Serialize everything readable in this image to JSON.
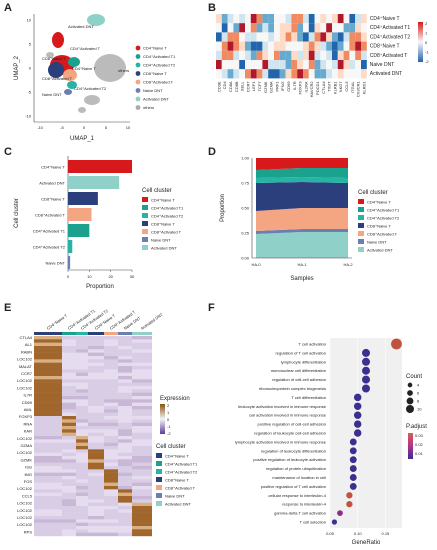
{
  "panels": {
    "a": "A",
    "b": "B",
    "c": "C",
    "d": "D",
    "e": "E",
    "f": "F"
  },
  "colors": {
    "cd4_naive": "#d7191c",
    "cd4_act1": "#1aa28f",
    "cd4_act2": "#26b4a4",
    "cd8_naive": "#2b3f7c",
    "cd8_act": "#f4a582",
    "naive_dnt": "#6a7fb0",
    "act_dnt": "#8fd0c8",
    "others": "#aaaaaa"
  },
  "panelA": {
    "xlabel": "UMAP_1",
    "ylabel": "UMAP_2",
    "xticks": [
      "-10",
      "-5",
      "0",
      "5",
      "10"
    ],
    "yticks": [
      "10",
      "5",
      "0",
      "-5",
      "-10"
    ],
    "cluster_labels": [
      "Activated DNT",
      "CD4⁺Activated T",
      "CD8⁺Naive T",
      "CD4⁺Naive T",
      "CD4⁺Activated T2",
      "Naive DNT",
      "CD8⁺Activated T",
      "others"
    ],
    "legend": [
      "CD4⁺Naive T",
      "CD4⁺Activated T1",
      "CD4⁺Activated T2",
      "CD8⁺Naive T",
      "CD8⁺Activated T",
      "Naive DNT",
      "Activated DNT",
      "others"
    ]
  },
  "panelB": {
    "rows": [
      "CD4⁺Naive T",
      "CD4⁺Activated T1",
      "CD4⁺Activated T2",
      "CD8⁺Naive T",
      "CD8⁺Activated T",
      "Naive DNT",
      "Activated DNT"
    ],
    "cols": [
      "CD3E",
      "CD4",
      "CD8A",
      "CD8B",
      "SELL",
      "CCR7",
      "LEF1",
      "TCF7",
      "GZMK",
      "GZMA",
      "PRF1",
      "IFNG",
      "CD69",
      "IL7R",
      "FOXP3",
      "IL2RA",
      "HAVCR2",
      "PDCD1",
      "CTLA4",
      "TIGIT",
      "KLRB1",
      "NKG7",
      "CCL5",
      "ITGAL",
      "CX3CR1",
      "KLRD1"
    ],
    "scale_ticks": [
      "2",
      "1",
      "0",
      "-1",
      "-2"
    ]
  },
  "chart_data": [
    {
      "type": "bar",
      "categories": [
        "CD4⁺Naive T",
        "Activated DNT",
        "CD8⁺Naive T",
        "CD8⁺Activated T",
        "CD4⁺Activated T1",
        "CD4⁺Activated T2",
        "Naive DNT"
      ],
      "values": [
        30,
        24,
        14,
        11,
        10,
        2,
        1
      ],
      "xlabel": "Proportion",
      "ylabel": "Cell cluster",
      "xlim": [
        0,
        30
      ],
      "xticks": [
        "0",
        "10",
        "20",
        "30"
      ],
      "legend_title": "Cell cluster",
      "legend": [
        "CD4⁺Naive T",
        "CD4⁺Activated T1",
        "CD4⁺Activated T2",
        "CD8⁺Naive T",
        "CD8⁺Activated T",
        "Naive DNT",
        "Activated DNT"
      ]
    },
    {
      "type": "area",
      "x": [
        "HA-0",
        "HA-1",
        "HA-2"
      ],
      "series": [
        {
          "name": "CD4⁺Naive T",
          "values": [
            0.12,
            0.1,
            0.1
          ]
        },
        {
          "name": "CD4⁺Activated T1",
          "values": [
            0.08,
            0.09,
            0.1
          ]
        },
        {
          "name": "CD4⁺Activated T2",
          "values": [
            0.05,
            0.05,
            0.05
          ]
        },
        {
          "name": "CD8⁺Naive T",
          "values": [
            0.28,
            0.26,
            0.25
          ]
        },
        {
          "name": "CD8⁺Activated T",
          "values": [
            0.2,
            0.21,
            0.21
          ]
        },
        {
          "name": "Naive DNT",
          "values": [
            0.03,
            0.03,
            0.03
          ]
        },
        {
          "name": "Activated DNT",
          "values": [
            0.24,
            0.26,
            0.26
          ]
        }
      ],
      "xlabel": "Samples",
      "ylabel": "Proportion",
      "ylim": [
        0,
        1
      ],
      "yticks": [
        "1.00",
        "0.75",
        "0.50",
        "0.25",
        "0.00"
      ],
      "legend_title": "Cell cluster"
    },
    {
      "type": "heatmap",
      "groups": [
        "CD4⁺Naive T",
        "CD4⁺Activated T1",
        "CD4⁺Activated T2",
        "CD8⁺Naive T",
        "CD8⁺Activated T",
        "Naive DNT",
        "Activated DNT"
      ],
      "genes": [
        "CTLA4",
        "AL1",
        "RABN",
        "LOC102",
        "MALAT",
        "CCR7",
        "LOC102",
        "LOC102",
        "IL7R",
        "CD69",
        "AML",
        "FOXP3",
        "RNA",
        "KAR",
        "LOC102",
        "GZMA",
        "LOC102",
        "GZMK",
        "ISG",
        "IMG",
        "FOS",
        "LOC102",
        "CCL5",
        "LOC102",
        "LOC102",
        "LOC102",
        "LOC102",
        "RPS"
      ],
      "legend_title": "Expression",
      "scale_ticks": [
        "2",
        "1",
        "0",
        "-1",
        "-2"
      ],
      "cluster_legend_title": "Cell cluster"
    },
    {
      "type": "scatter",
      "terms": [
        "T cell activation",
        "regulation of T cell activation",
        "lymphocyte differentiation",
        "mononuclear cell differentiation",
        "regulation of cell-cell adhesion",
        "ribonucleoprotein complex biogenesis",
        "T cell differentiation",
        "leukocyte activation involved in immune response",
        "cell activation involved in immune response",
        "positive regulation of cell-cell adhesion",
        "regulation of leukocyte cell-cell adhesion",
        "lymphocyte activation involved in immune response",
        "regulation of leukocyte differentiation",
        "positive regulation of leukocyte activation",
        "regulation of protein ubiquitination",
        "maintenance of location in cell",
        "positive regulation of T cell activation",
        "cellular response to interleukin-4",
        "response to interleukin-4",
        "gamma-delta T cell activation",
        "T cell selection"
      ],
      "gene_ratio": [
        0.17,
        0.115,
        0.115,
        0.115,
        0.115,
        0.115,
        0.1,
        0.1,
        0.1,
        0.1,
        0.1,
        0.092,
        0.092,
        0.092,
        0.092,
        0.092,
        0.092,
        0.085,
        0.085,
        0.068,
        0.058
      ],
      "count": [
        15,
        10,
        10,
        10,
        10,
        10,
        9,
        9,
        9,
        9,
        9,
        8,
        8,
        8,
        8,
        8,
        8,
        7,
        7,
        6,
        5
      ],
      "p_adjust": [
        0.03,
        0.012,
        0.008,
        0.008,
        0.008,
        0.008,
        0.012,
        0.01,
        0.01,
        0.01,
        0.01,
        0.012,
        0.012,
        0.012,
        0.012,
        0.012,
        0.012,
        0.028,
        0.028,
        0.02,
        0.012
      ],
      "xlabel": "GeneRatio",
      "xticks": [
        "0.05",
        "0.10",
        "0.15"
      ],
      "legend_count_title": "Count",
      "count_ticks": [
        "4",
        "6",
        "8",
        "10"
      ],
      "legend_p_title": "P.adjust",
      "p_ticks": [
        "0.03",
        "0.02",
        "0.01"
      ]
    }
  ]
}
